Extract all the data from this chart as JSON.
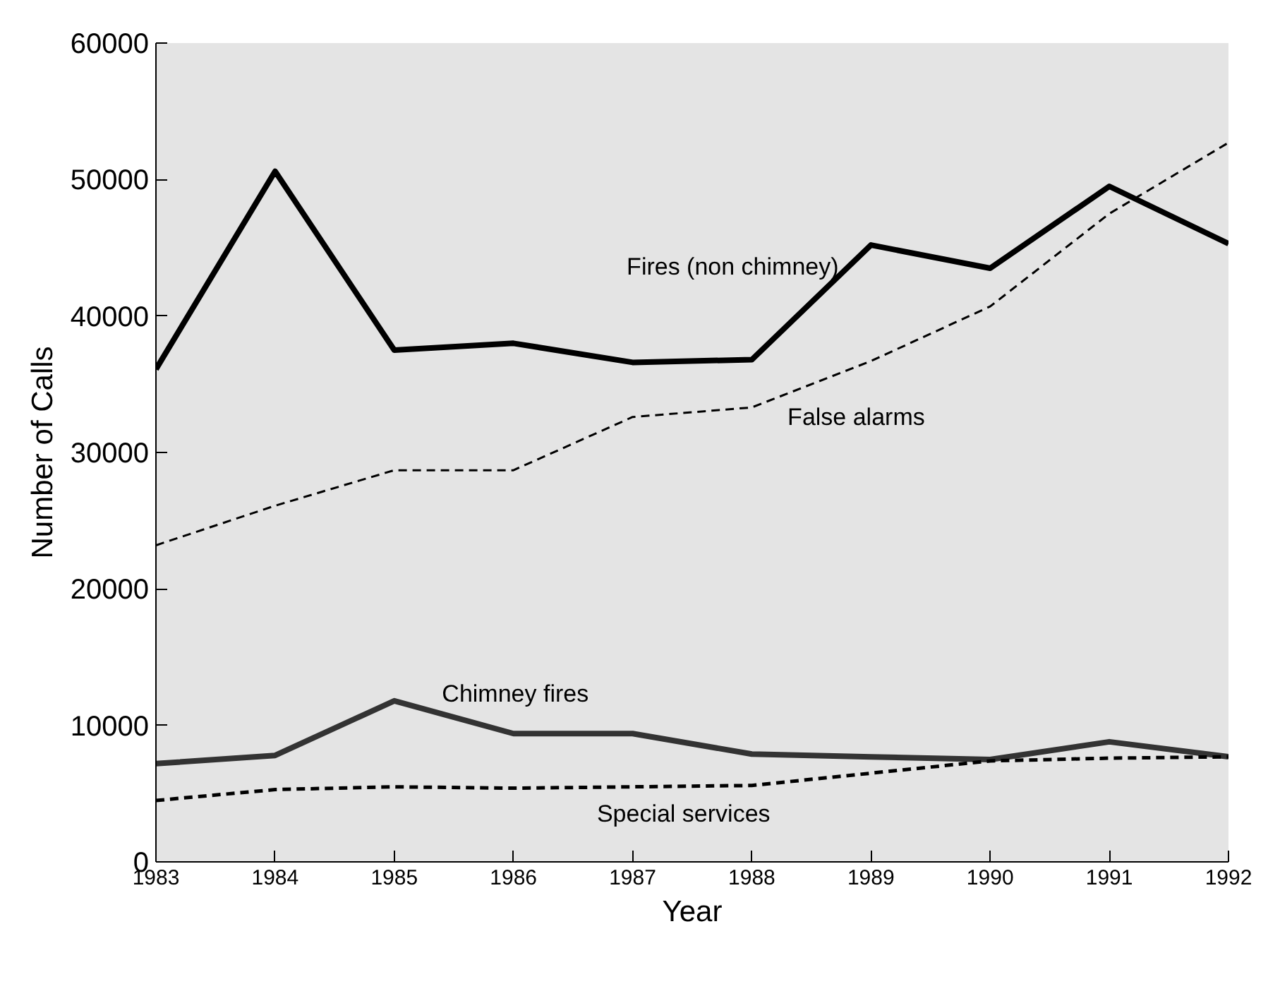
{
  "chart_data": {
    "type": "line",
    "xlabel": "Year",
    "ylabel": "Number of Calls",
    "x": [
      1983,
      1984,
      1985,
      1986,
      1987,
      1988,
      1989,
      1990,
      1991,
      1992
    ],
    "series": [
      {
        "name": "Fires (non chimney)",
        "color": "#000000",
        "line_style": "solid",
        "values": [
          36100,
          50600,
          37500,
          38000,
          36600,
          36800,
          45200,
          43500,
          49500,
          45300
        ]
      },
      {
        "name": "False alarms",
        "color": "#000000",
        "line_style": "dashed",
        "values": [
          23200,
          26100,
          28700,
          28700,
          32600,
          33300,
          36700,
          40700,
          47500,
          52700
        ]
      },
      {
        "name": "Chimney fires",
        "color": "#333333",
        "line_style": "solid",
        "values": [
          7200,
          7800,
          11800,
          9400,
          9400,
          7900,
          7700,
          7500,
          8800,
          7700
        ]
      },
      {
        "name": "Special services",
        "color": "#000000",
        "line_style": "dashed",
        "values": [
          4500,
          5300,
          5500,
          5400,
          5500,
          5600,
          6500,
          7400,
          7600,
          7700
        ]
      }
    ],
    "xlim": [
      1983,
      1992
    ],
    "ylim": [
      0,
      60000
    ],
    "xticks": [
      1983,
      1984,
      1985,
      1986,
      1987,
      1988,
      1989,
      1990,
      1991,
      1992
    ],
    "yticks": [
      0,
      10000,
      20000,
      30000,
      40000,
      50000,
      60000
    ]
  }
}
